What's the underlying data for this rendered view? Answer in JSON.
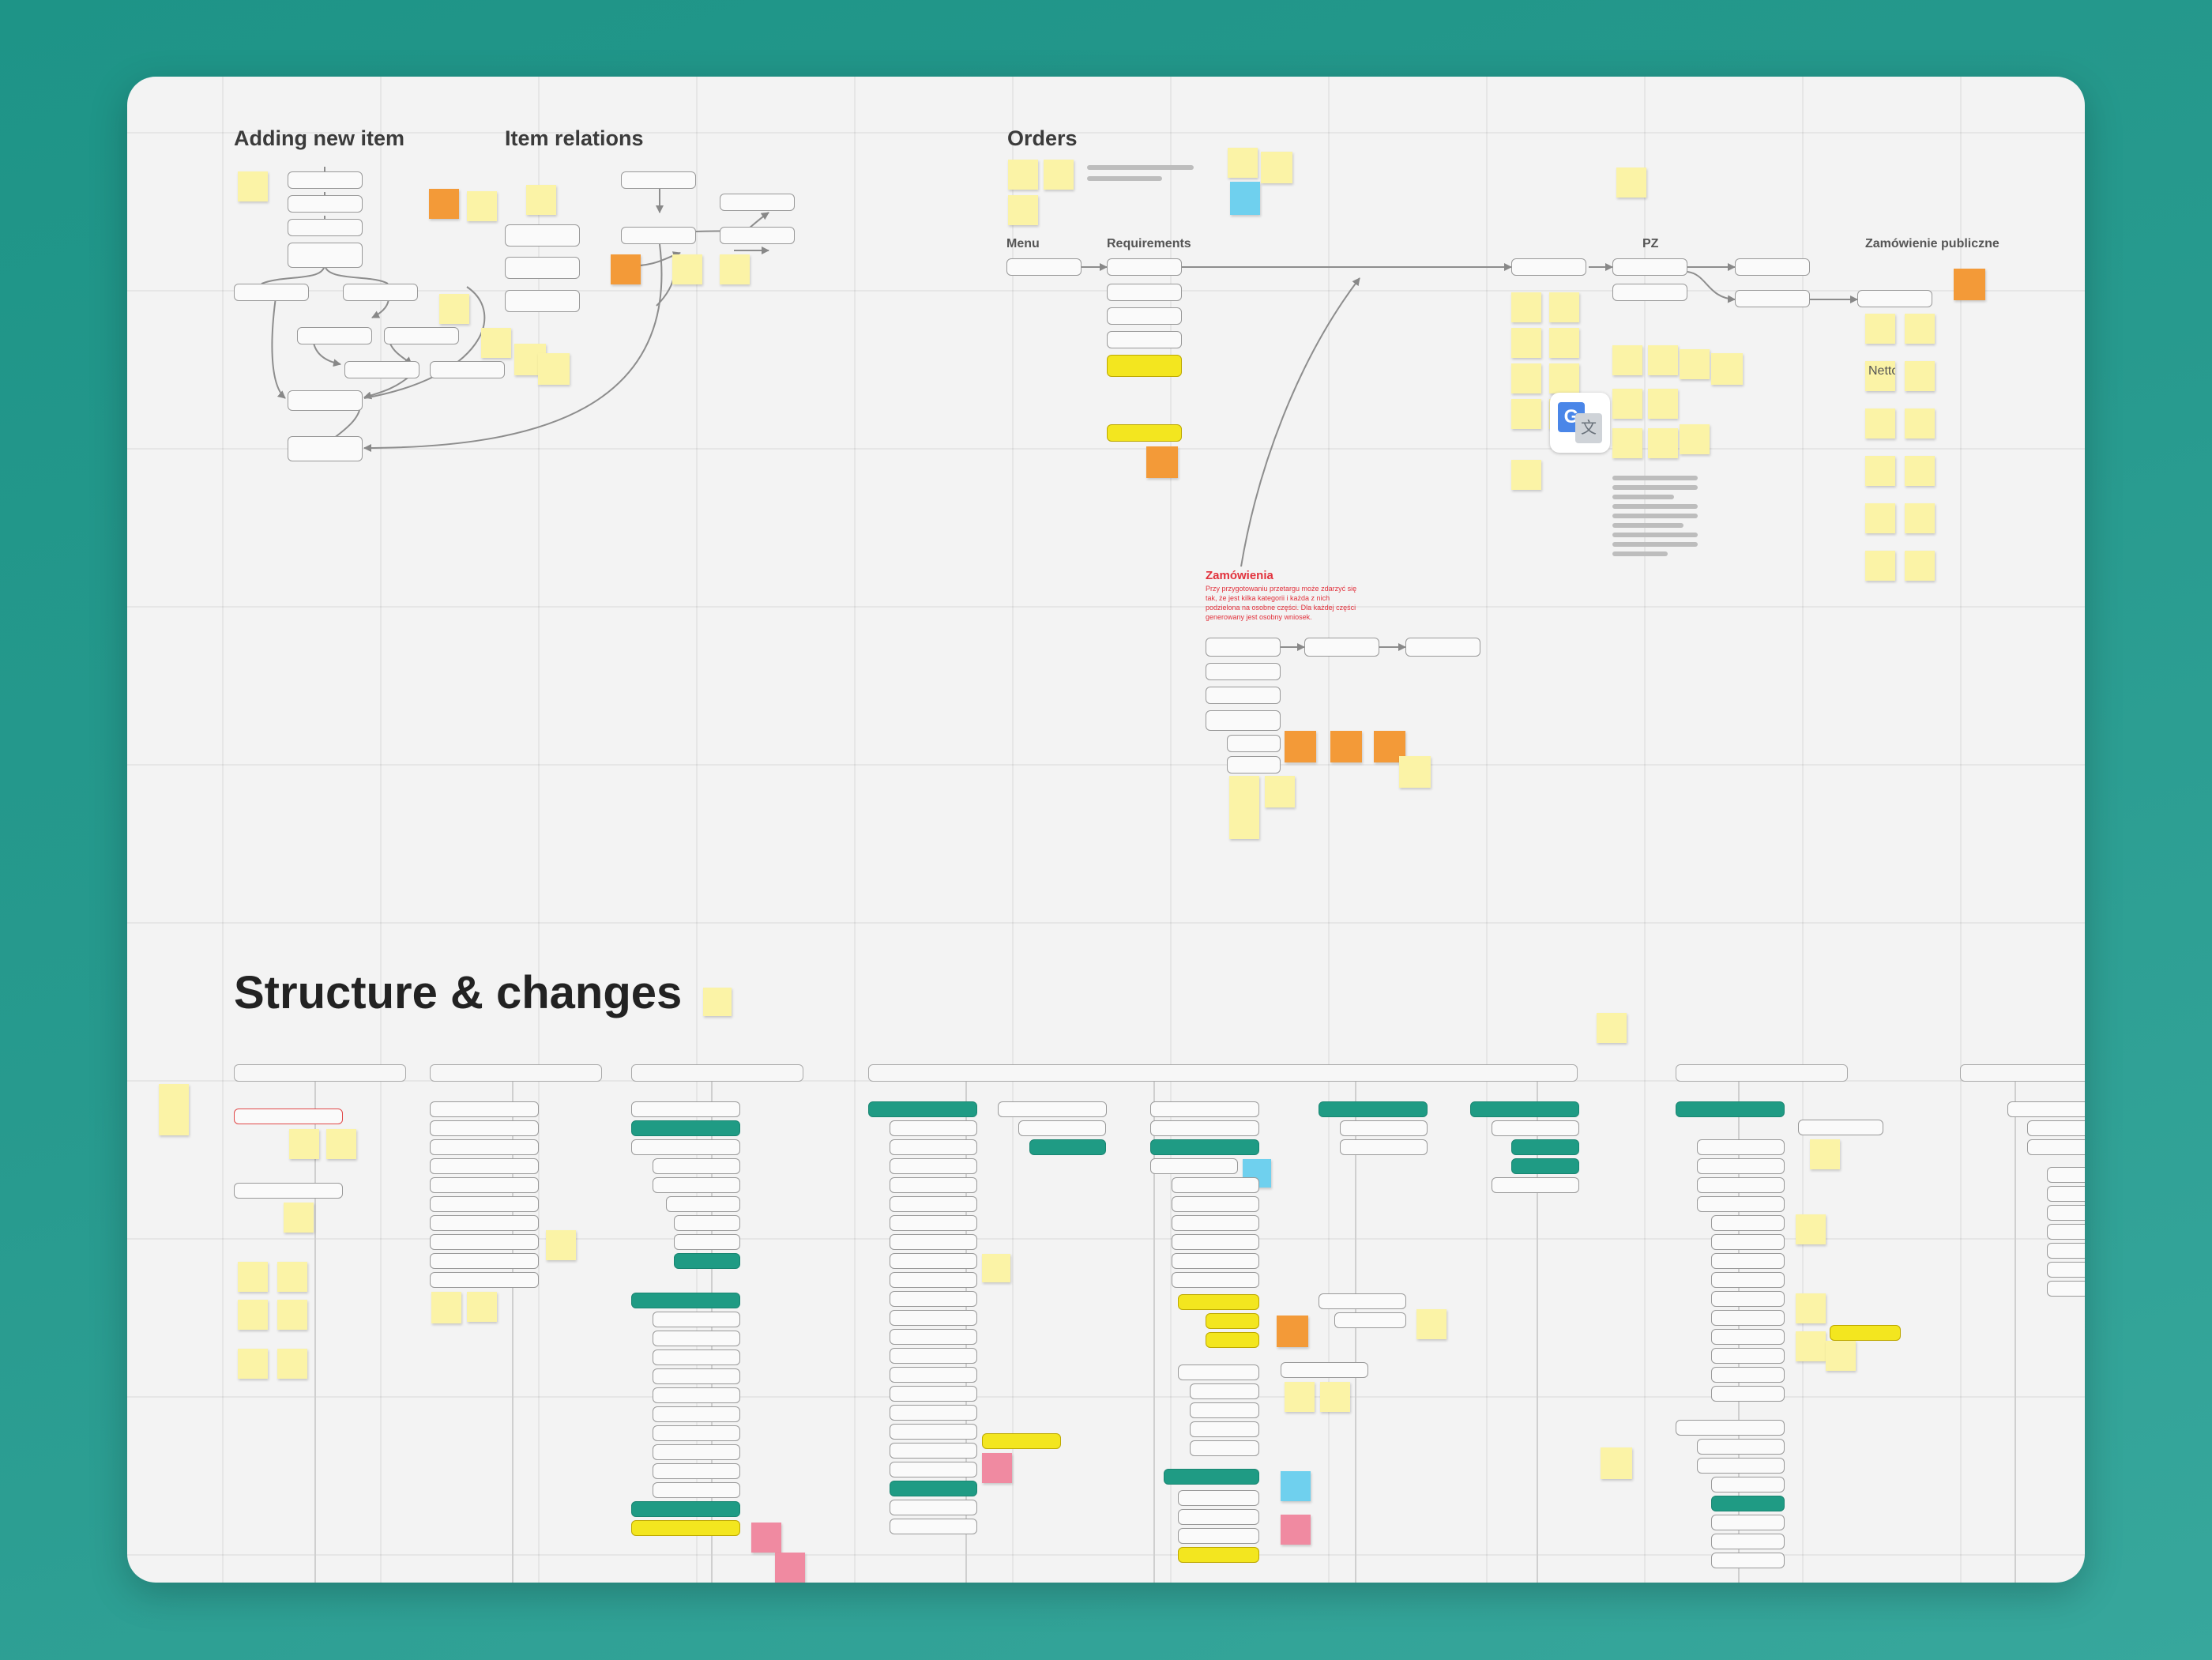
{
  "board": {
    "titles": {
      "adding_new_item": "Adding new item",
      "item_relations": "Item relations",
      "orders": "Orders",
      "menu": "Menu",
      "requirements": "Requirements",
      "pz": "PZ",
      "zamowienie_publiczne": "Zamówienie publiczne",
      "structure_changes": "Structure & changes"
    },
    "zamowienia_note": {
      "heading": "Zamówienia",
      "body": "Przy przygotowaniu przetargu może zdarzyć się tak, że jest kilka kategorii i każda z nich podzielona na osobne części. Dla każdej części generowany jest osobny wniosek."
    },
    "netto_note": "Netto",
    "translate_icon": "google-translate-icon",
    "colors": {
      "canvas_bg": "#f3f3f3",
      "page_bg": "#1e9487",
      "sticky_yellow": "#fbf3a6",
      "sticky_orange": "#f39a38",
      "sticky_blue": "#6fd0ee",
      "sticky_pink": "#f08aa1",
      "node_green": "#1f9b84",
      "node_yellow": "#f3e61f",
      "accent_red": "#e2313c"
    }
  }
}
